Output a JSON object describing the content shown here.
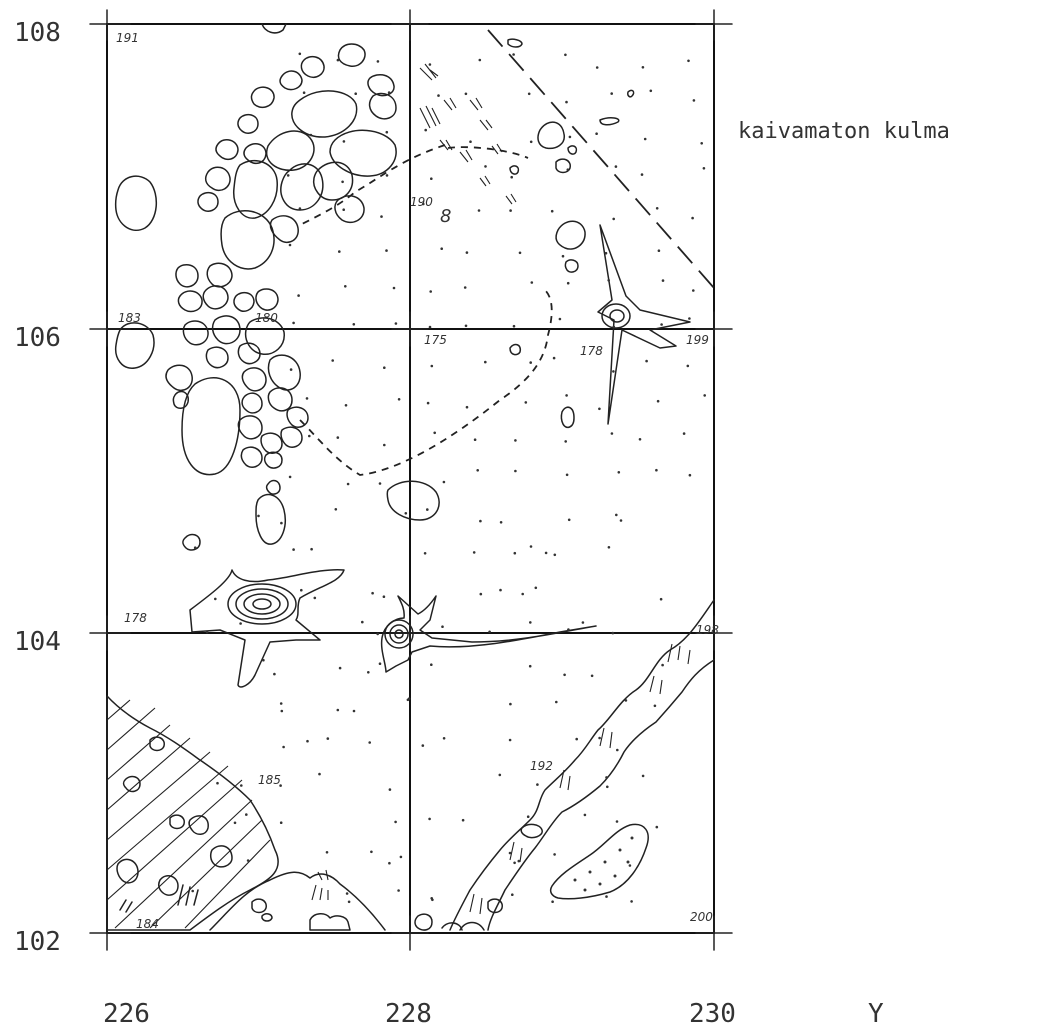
{
  "title": "",
  "note": "kaivamaton kulma",
  "axes": {
    "x_ticks": [
      "226",
      "228",
      "230"
    ],
    "x_label": "Y",
    "y_ticks": [
      "108",
      "106",
      "104",
      "102"
    ]
  },
  "annotations": {
    "a191": "191",
    "a183": "183",
    "a180": "180",
    "a178_left": "178",
    "a190": "190",
    "a175": "175",
    "a178_right": "178",
    "a199": "199",
    "a198": "198",
    "a185": "185",
    "a192": "192",
    "a184": "184",
    "a200": "200"
  }
}
